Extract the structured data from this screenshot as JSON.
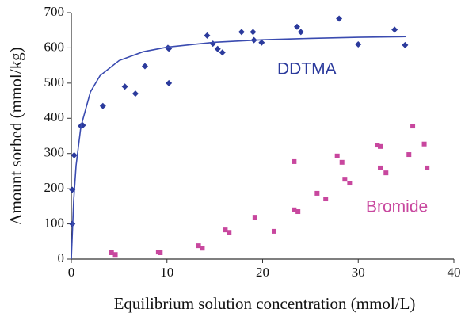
{
  "chart_data": {
    "type": "scatter",
    "x_label": "Equilibrium solution concentration (mmol/L)",
    "y_label": "Amount sorbed (mmol/kg)",
    "xlim": [
      0,
      40
    ],
    "xticks": [
      0,
      10,
      20,
      30,
      40
    ],
    "ylim": [
      0,
      700
    ],
    "yticks": [
      0,
      100,
      200,
      300,
      400,
      500,
      600,
      700
    ],
    "grid": false,
    "annotations": [
      "DDTMA",
      "Bromide"
    ],
    "series": [
      {
        "name": "DDTMA",
        "color": "#2b3a9c",
        "marker": "diamond",
        "x": [
          0.1,
          0.1,
          0.3,
          1.0,
          1.2,
          3.3,
          5.6,
          6.7,
          7.7,
          10.1,
          10.2,
          10.2,
          14.2,
          14.8,
          15.3,
          15.8,
          17.8,
          19.0,
          19.1,
          19.9,
          23.6,
          24.0,
          28.0,
          30.0,
          33.8,
          34.9
        ],
        "values": [
          100,
          197,
          295,
          378,
          380,
          435,
          490,
          470,
          548,
          600,
          598,
          500,
          635,
          612,
          597,
          587,
          645,
          645,
          622,
          615,
          660,
          645,
          683,
          610,
          652,
          608
        ]
      },
      {
        "name": "Bromide",
        "color": "#c8479e",
        "marker": "square",
        "x": [
          4.2,
          4.6,
          9.1,
          9.3,
          13.3,
          13.7,
          16.1,
          16.5,
          19.2,
          21.2,
          23.3,
          23.3,
          23.7,
          25.7,
          26.6,
          27.8,
          28.3,
          28.6,
          29.1,
          32.0,
          32.3,
          32.3,
          32.9,
          35.3,
          35.7,
          36.9,
          37.2
        ],
        "values": [
          18,
          13,
          20,
          18,
          38,
          31,
          83,
          76,
          119,
          79,
          277,
          140,
          135,
          187,
          171,
          293,
          275,
          227,
          216,
          324,
          320,
          259,
          245,
          297,
          378,
          327,
          259
        ]
      },
      {
        "name": "DDTMA fit",
        "color": "#3a4bb0",
        "marker": "line",
        "x": [
          0,
          0.25,
          0.5,
          1,
          2,
          3,
          5,
          7.5,
          10,
          15,
          20,
          25,
          30,
          35
        ],
        "values": [
          0,
          167,
          266,
          376,
          475,
          521,
          564,
          589,
          602,
          616,
          623,
          627,
          630,
          632
        ]
      }
    ]
  }
}
